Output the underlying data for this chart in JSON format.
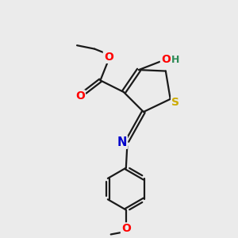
{
  "bg_color": "#ebebeb",
  "atom_colors": {
    "O": "#ff0000",
    "N": "#0000cc",
    "S": "#ccaa00",
    "H": "#2e8b57"
  },
  "bond_color": "#1a1a1a",
  "bond_width": 1.6,
  "figsize": [
    3.0,
    3.0
  ],
  "dpi": 100,
  "xlim": [
    0,
    10
  ],
  "ylim": [
    0,
    10
  ]
}
